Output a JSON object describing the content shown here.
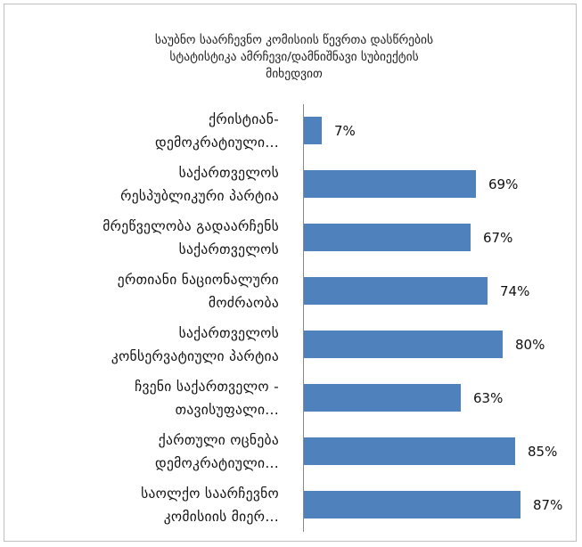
{
  "chart_data": {
    "type": "bar",
    "orientation": "horizontal",
    "title": "საუბნო საარჩევნო კომისიის წევრთა დასწრების\nსტატისტიკა ამრჩევი/დამნიშნავი სუბიექტის\nმიხედვით",
    "categories": [
      "ქრისტიან-\nდემოკრატიული...",
      "საქართველოს\nრესპუბლიკური პარტია",
      "მრეწველობა გადაარჩენს\nსაქართველოს",
      "ერთიანი ნაციონალური\nმოძრაობა",
      "საქართველოს\nკონსერვატიული პარტია",
      "ჩვენი საქართველო -\nთავისუფალი...",
      "ქართული ოცნება\nდემოკრატიული...",
      "საოლქო საარჩევნო\nკომისიის მიერ..."
    ],
    "values": [
      7,
      69,
      67,
      74,
      80,
      63,
      85,
      87
    ],
    "data_labels": [
      "7%",
      "69%",
      "67%",
      "74%",
      "80%",
      "63%",
      "85%",
      "87%"
    ],
    "xlim": [
      0,
      100
    ],
    "bar_color": "#4f81bd",
    "grid": false,
    "legend": "none"
  }
}
